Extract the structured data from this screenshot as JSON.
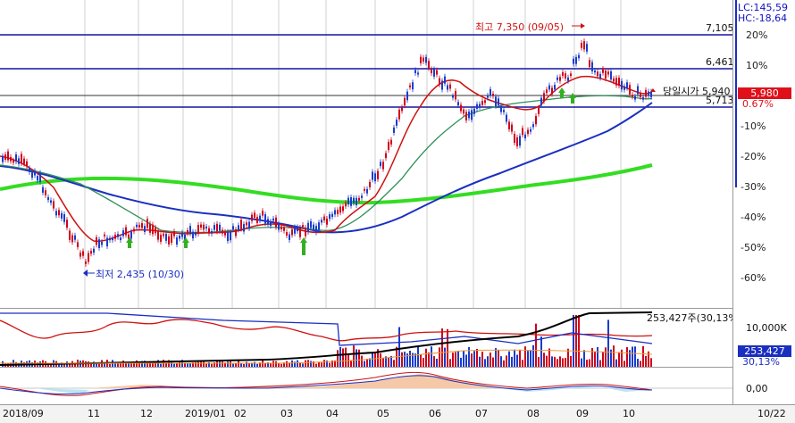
{
  "price_labels": {
    "high_annotation": "최고 7,350 (09/05)",
    "low_annotation": "최저 2,435 (10/30)",
    "line_7105": "7,105",
    "line_6461": "6,461",
    "line_5713": "5,713",
    "open_label": "당일시가 5,940",
    "current_price": "5,980",
    "change_pct": "0.67%"
  },
  "right_axis": {
    "lc": "LC:145,59",
    "hc": "HC:-18,64",
    "percent_ticks": [
      "20%",
      "10%",
      "0%",
      "-10%",
      "-20%",
      "-30%",
      "-40%",
      "-50%",
      "-60%"
    ],
    "volume_tick": "10,000K",
    "volume_value": "253,427",
    "volume_pct": "30,13%",
    "osc_tick": "0,00"
  },
  "volume_labels": {
    "shares_label": "253,427주(30,13%)"
  },
  "date_axis": [
    "2018/09",
    "11",
    "12",
    "2019/01",
    "02",
    "03",
    "04",
    "05",
    "06",
    "07",
    "08",
    "09",
    "10",
    "10/22"
  ],
  "colors": {
    "candle_up": "#d0021b",
    "candle_down": "#1a3ccc",
    "ma_red": "#d01010",
    "ma_gray_green": "#2f8f5a",
    "ma_blue": "#1a2fc0",
    "ma_green_thick": "#33dd22",
    "hline_blue": "#1515a0",
    "current_box": "#e0101a",
    "volume_box": "#1a2fc0"
  }
}
